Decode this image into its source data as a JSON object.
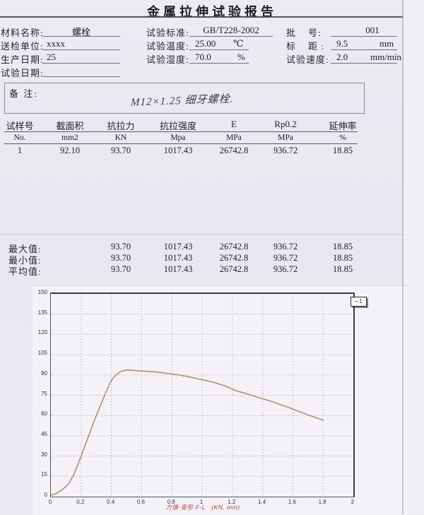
{
  "title": "金属拉伸试验报告",
  "header": {
    "material_label": "材料名称:",
    "material_value": "螺栓",
    "inspection_unit_label": "送检单位:",
    "inspection_unit_value": "xxxx",
    "production_date_label": "生产日期:",
    "production_date_value": "25",
    "test_date_label": "试验日期:",
    "test_date_value": "",
    "standard_label": "试验标准:",
    "standard_value": "GB/T228-2002",
    "temperature_label": "试验温度:",
    "temperature_value": "25.00",
    "temperature_unit": "℃",
    "humidity_label": "试验湿度:",
    "humidity_value": "70.0",
    "humidity_unit": "%",
    "batch_label": "批    号:",
    "batch_value": "001",
    "gauge_label": "标    距 :",
    "gauge_value": "9.5",
    "gauge_unit": "mm",
    "speed_label": "试验速度:",
    "speed_value": "2.0",
    "speed_unit": "mm/min"
  },
  "remarks": {
    "label": "备 注:",
    "note": "M12×1.25 细牙螺栓."
  },
  "table": {
    "headers": [
      "试样号",
      "截面积",
      "抗拉力",
      "抗拉强度",
      "E",
      "Rp0.2",
      "延伸率"
    ],
    "units": [
      "No.",
      "mm2",
      "KN",
      "Mpa",
      "MPa",
      "MPa",
      "%"
    ],
    "rows": [
      [
        "1",
        "92.10",
        "93.70",
        "1017.43",
        "26742.8",
        "936.72",
        "18.85"
      ]
    ]
  },
  "summary": {
    "rows": [
      {
        "label": "最大值:",
        "values": [
          "93.70",
          "1017.43",
          "26742.8",
          "936.72",
          "18.85"
        ]
      },
      {
        "label": "最小值:",
        "values": [
          "93.70",
          "1017.43",
          "26742.8",
          "936.72",
          "18.85"
        ]
      },
      {
        "label": "平均值:",
        "values": [
          "93.70",
          "1017.43",
          "26742.8",
          "936.72",
          "18.85"
        ]
      }
    ]
  },
  "chart_data": {
    "type": "line",
    "title": "",
    "xlabel": "力值-变形 F-L   (KN, mm)",
    "ylabel": "",
    "xlim": [
      0,
      2
    ],
    "ylim": [
      0,
      150
    ],
    "x_ticks": [
      0,
      0.2,
      0.4,
      0.6,
      0.8,
      1,
      1.2,
      1.4,
      1.6,
      1.8,
      2
    ],
    "y_ticks": [
      0,
      15,
      30,
      45,
      60,
      75,
      90,
      105,
      120,
      135,
      150
    ],
    "grid": "dotted",
    "legend": {
      "label": "1",
      "position": "top-right"
    },
    "series": [
      {
        "name": "1",
        "color": "#b18f6c",
        "x": [
          0,
          0.03,
          0.06,
          0.09,
          0.12,
          0.15,
          0.18,
          0.21,
          0.25,
          0.29,
          0.33,
          0.37,
          0.4,
          0.43,
          0.46,
          0.5,
          0.55,
          0.62,
          0.7,
          0.78,
          0.85,
          0.92,
          1.0,
          1.08,
          1.15,
          1.22,
          1.3,
          1.38,
          1.45,
          1.52,
          1.6,
          1.7,
          1.8
        ],
        "y": [
          1,
          2,
          4,
          6.5,
          10,
          16,
          24,
          33,
          45,
          57,
          68,
          79,
          86,
          90,
          92.5,
          93.7,
          93.4,
          92.8,
          92.2,
          91,
          90,
          88.5,
          86.5,
          84.5,
          82,
          78.5,
          76,
          73,
          70.8,
          68,
          64.8,
          60.5,
          56.5
        ]
      }
    ]
  }
}
